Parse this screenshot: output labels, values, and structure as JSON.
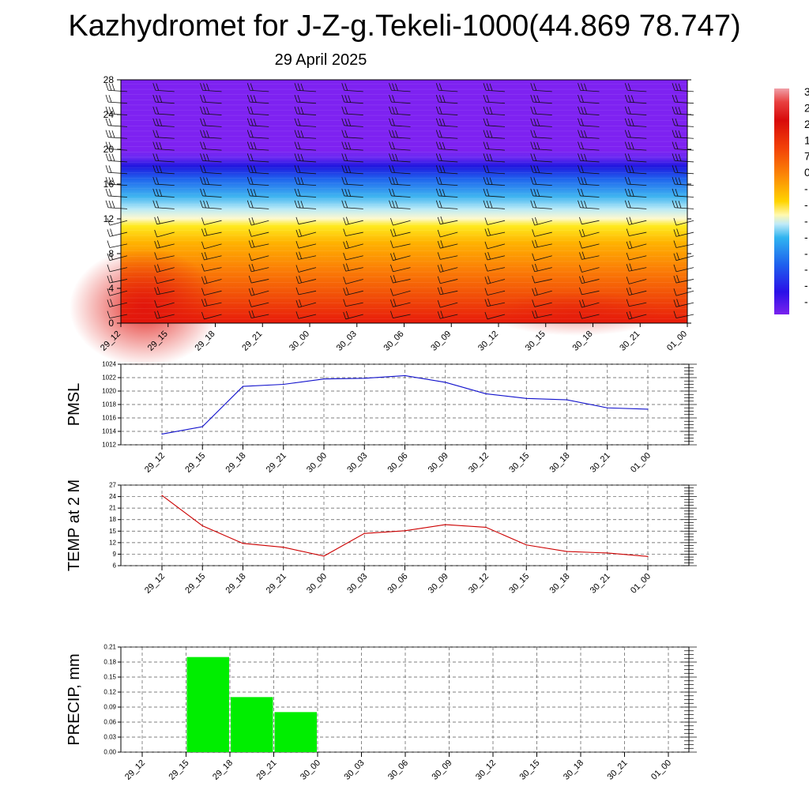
{
  "title": "Kazhydromet for J-Z-g.Tekeli-1000(44.869 78.747)",
  "subtitle": "29 April 2025",
  "colors": {
    "pmsl": "#1010cc",
    "temp": "#cc0000",
    "precip": "#00ee00",
    "grid": "#555555"
  },
  "chart_data": [
    {
      "type": "heatmap",
      "title": "",
      "xlabel": "",
      "ylabel": "",
      "x_tick_labels": [
        "29_12",
        "29_15",
        "29_18",
        "29_21",
        "30_00",
        "30_03",
        "30_06",
        "30_09",
        "30_12",
        "30_15",
        "30_18",
        "30_21",
        "01_00"
      ],
      "y_ticks": [
        0,
        4,
        8,
        12,
        16,
        20,
        24,
        28
      ],
      "ylim": [
        0,
        28
      ],
      "colorbar_visible_labels": [
        "3",
        "2",
        "2",
        "1",
        "7",
        "0",
        "-",
        "-",
        "-",
        "-",
        "-",
        "-",
        "-",
        "-"
      ],
      "field_description": "temperature-like field, warm near surface, freezing level near 12, coldest above 19",
      "wind_barbs": true
    },
    {
      "type": "line",
      "title": "",
      "xlabel": "",
      "ylabel": "PMSL",
      "categories": [
        "29_12",
        "29_15",
        "29_18",
        "29_21",
        "30_00",
        "30_03",
        "30_06",
        "30_09",
        "30_12",
        "30_15",
        "30_18",
        "30_21",
        "01_00"
      ],
      "series": [
        {
          "values": [
            1013.6,
            1014.7,
            1020.7,
            1021.0,
            1021.8,
            1021.9,
            1022.3,
            1021.3,
            1019.6,
            1018.9,
            1018.7,
            1017.5,
            1017.3
          ]
        }
      ],
      "y_ticks": [
        1012,
        1014,
        1016,
        1018,
        1020,
        1022,
        1024
      ],
      "ylim": [
        1012,
        1024
      ],
      "grid": true
    },
    {
      "type": "line",
      "title": "",
      "xlabel": "",
      "ylabel": "TEMP at 2 M",
      "categories": [
        "29_12",
        "29_15",
        "29_18",
        "29_21",
        "30_00",
        "30_03",
        "30_06",
        "30_09",
        "30_12",
        "30_15",
        "30_18",
        "30_21",
        "01_00"
      ],
      "series": [
        {
          "values": [
            24.3,
            16.4,
            11.8,
            10.8,
            8.5,
            14.4,
            15.1,
            16.7,
            16.0,
            11.4,
            9.7,
            9.3,
            8.4
          ]
        }
      ],
      "y_ticks": [
        6,
        9,
        12,
        15,
        18,
        21,
        24,
        27
      ],
      "ylim": [
        6,
        27
      ],
      "grid": true
    },
    {
      "type": "bar",
      "title": "",
      "xlabel": "",
      "ylabel": "PRECIP, mm",
      "categories": [
        "29_12",
        "29_15",
        "29_18",
        "29_21",
        "30_00",
        "30_03",
        "30_06",
        "30_09",
        "30_12",
        "30_15",
        "30_18",
        "30_21",
        "01_00"
      ],
      "series": [
        {
          "values": [
            0,
            0.19,
            0.11,
            0.08,
            0,
            0,
            0,
            0,
            0,
            0,
            0,
            0,
            0
          ]
        }
      ],
      "y_ticks": [
        "0.00",
        "0.03",
        "0.06",
        "0.09",
        "0.12",
        "0.15",
        "0.18",
        "0.21"
      ],
      "ylim": [
        0,
        0.21
      ],
      "grid": true
    }
  ]
}
